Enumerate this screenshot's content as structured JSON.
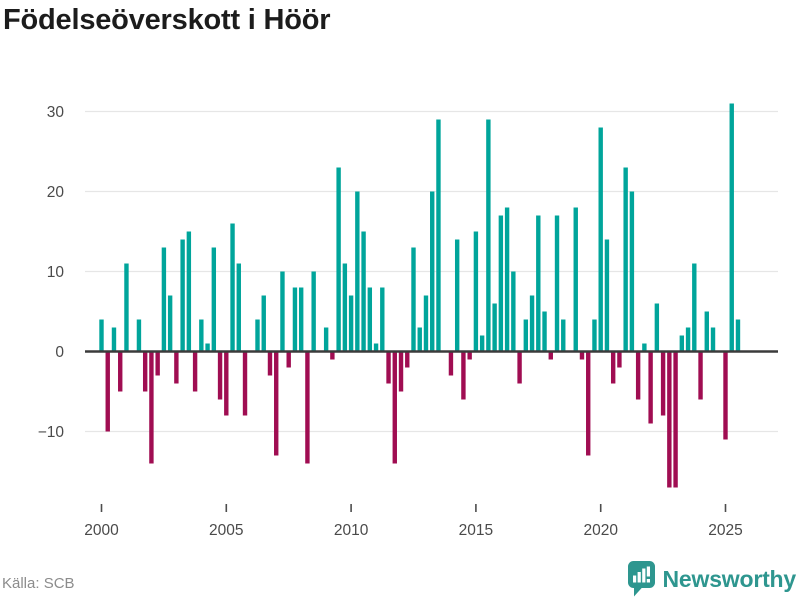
{
  "title": "Födelseöverskott i Höör",
  "source": "Källa: SCB",
  "brand": {
    "name": "Newsworthy",
    "color": "#2e968f"
  },
  "colors": {
    "positive_bar": "#00a59b",
    "negative_bar": "#a00d52",
    "gridline": "#e6e6e6",
    "zero_line": "#3b3b3b",
    "axis_text": "#4a4a4a"
  },
  "chart_data": {
    "type": "bar",
    "period": "quarterly",
    "start": "2000-Q1",
    "end": "2025-Q3",
    "start_year": 2000,
    "grid": "horizontal",
    "legend": "none",
    "ylim": [
      -18,
      32
    ],
    "y_ticks": [
      30,
      20,
      10,
      0,
      -10
    ],
    "y_tick_labels": [
      "30",
      "20",
      "10",
      "0",
      "−10"
    ],
    "x_tick_years": [
      2000,
      2005,
      2010,
      2015,
      2020,
      2025
    ],
    "x_tick_labels": [
      "2000",
      "2005",
      "2010",
      "2015",
      "2020",
      "2025"
    ],
    "values": [
      4,
      -10,
      3,
      -5,
      11,
      0,
      4,
      -5,
      -14,
      -3,
      13,
      7,
      -4,
      14,
      15,
      -5,
      4,
      1,
      13,
      -6,
      -8,
      16,
      11,
      -8,
      0,
      4,
      7,
      -3,
      -13,
      10,
      -2,
      8,
      8,
      -14,
      10,
      0,
      3,
      -1,
      23,
      11,
      7,
      20,
      15,
      8,
      1,
      8,
      -4,
      -14,
      -5,
      -2,
      13,
      3,
      7,
      20,
      29,
      0,
      -3,
      14,
      -6,
      -1,
      15,
      2,
      29,
      6,
      17,
      18,
      10,
      -4,
      4,
      7,
      17,
      5,
      -1,
      17,
      4,
      0,
      18,
      -1,
      -13,
      4,
      28,
      14,
      -4,
      -2,
      23,
      20,
      -6,
      1,
      -9,
      6,
      -8,
      -17,
      -17,
      2,
      3,
      11,
      -6,
      5,
      3,
      0,
      -11,
      31,
      4
    ]
  }
}
